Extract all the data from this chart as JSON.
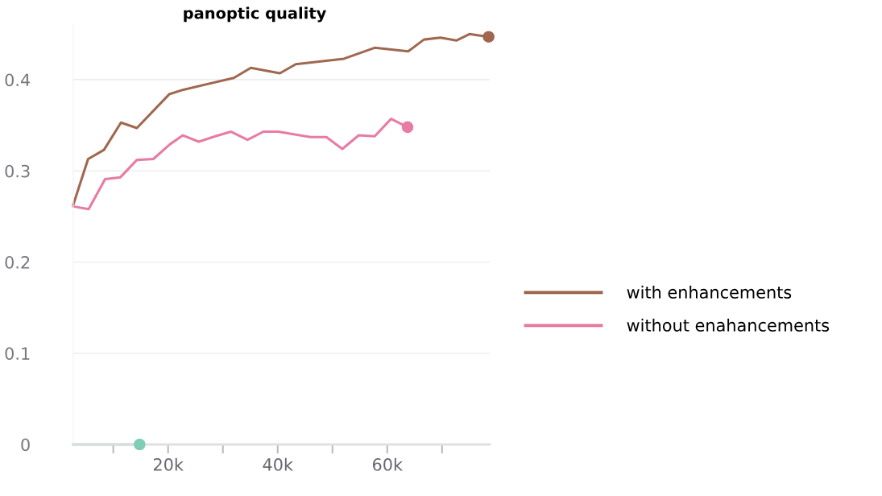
{
  "chart_data": {
    "type": "line",
    "title": "panoptic quality",
    "xlim": [
      2700,
      78700
    ],
    "ylim": [
      0,
      0.46
    ],
    "xticks": [
      {
        "value": 10000,
        "label": null
      },
      {
        "value": 20000,
        "label": "20k"
      },
      {
        "value": 30000,
        "label": null
      },
      {
        "value": 40000,
        "label": "40k"
      },
      {
        "value": 50000,
        "label": null
      },
      {
        "value": 60000,
        "label": "60k"
      },
      {
        "value": 70000,
        "label": null
      }
    ],
    "yticks": [
      0,
      0.1,
      0.2,
      0.3,
      0.4
    ],
    "grid": "y",
    "legend": "right",
    "series": [
      {
        "name": "with enhancements",
        "color": "#a0674f",
        "x": [
          2700,
          5400,
          8300,
          11400,
          14300,
          20200,
          22800,
          32000,
          35100,
          40400,
          43300,
          52100,
          57700,
          63800,
          66700,
          69700,
          72600,
          75000,
          78500
        ],
        "values": [
          0.263,
          0.313,
          0.323,
          0.353,
          0.347,
          0.384,
          0.389,
          0.402,
          0.413,
          0.407,
          0.417,
          0.423,
          0.435,
          0.431,
          0.444,
          0.446,
          0.443,
          0.45,
          0.447
        ]
      },
      {
        "name": "without enahancements",
        "color": "#e87ba4",
        "x": [
          2700,
          5500,
          8500,
          11300,
          14300,
          17300,
          20300,
          22700,
          25600,
          28600,
          31500,
          34500,
          37400,
          40100,
          46000,
          48900,
          51800,
          54800,
          57700,
          60700,
          63700
        ],
        "values": [
          0.261,
          0.258,
          0.291,
          0.293,
          0.312,
          0.313,
          0.329,
          0.339,
          0.332,
          0.338,
          0.343,
          0.334,
          0.343,
          0.343,
          0.337,
          0.337,
          0.324,
          0.339,
          0.338,
          0.357,
          0.348
        ]
      },
      {
        "color": "#7fcdb5",
        "x": [
          2700,
          14800
        ],
        "values": [
          0,
          0
        ]
      },
      {
        "type": "scatter",
        "marker": "circle",
        "color": "#a0674f",
        "x": [
          78500
        ],
        "values": [
          0.447
        ]
      },
      {
        "type": "scatter",
        "marker": "circle",
        "color": "#e87ba4",
        "x": [
          63700
        ],
        "values": [
          0.348
        ]
      },
      {
        "type": "scatter",
        "marker": "circle",
        "color": "#7fcdb5",
        "x": [
          14800
        ],
        "values": [
          0
        ]
      }
    ]
  }
}
